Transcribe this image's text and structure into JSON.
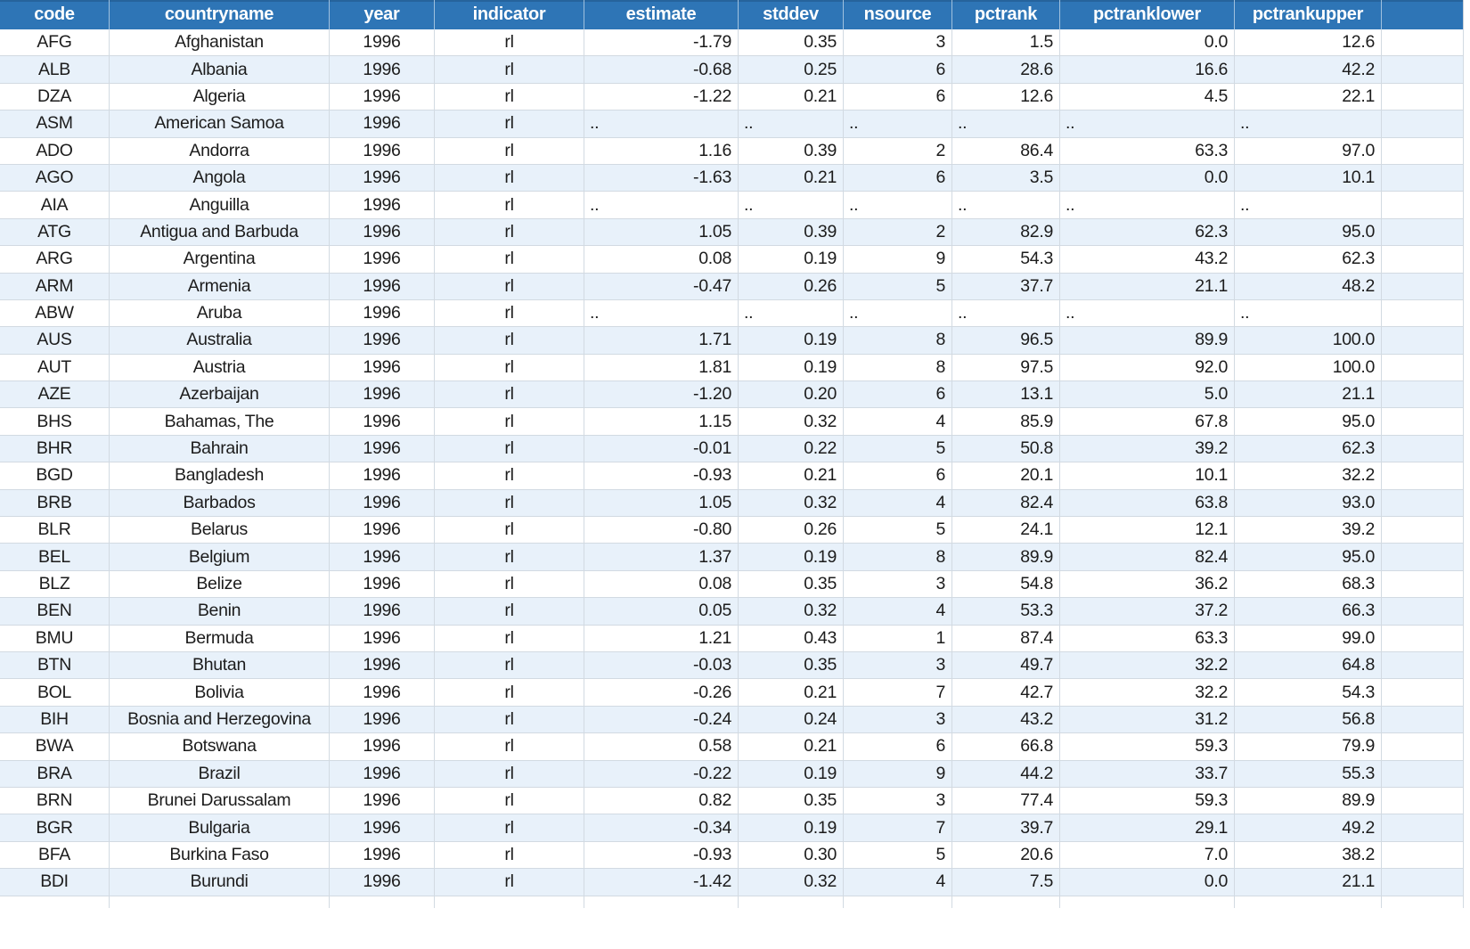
{
  "sheet": {
    "columns": [
      {
        "key": "code",
        "label": "code",
        "align": "center"
      },
      {
        "key": "countryname",
        "label": "countryname",
        "align": "center"
      },
      {
        "key": "year",
        "label": "year",
        "align": "center"
      },
      {
        "key": "indicator",
        "label": "indicator",
        "align": "center"
      },
      {
        "key": "estimate",
        "label": "estimate",
        "align": "right"
      },
      {
        "key": "stddev",
        "label": "stddev",
        "align": "right"
      },
      {
        "key": "nsource",
        "label": "nsource",
        "align": "right"
      },
      {
        "key": "pctrank",
        "label": "pctrank",
        "align": "right"
      },
      {
        "key": "pctranklower",
        "label": "pctranklower",
        "align": "right"
      },
      {
        "key": "pctrankupper",
        "label": "pctrankupper",
        "align": "right"
      }
    ],
    "missing_value_marker": "..",
    "selection": {
      "selected_cell": "code",
      "has_note_indicator": true
    },
    "colors": {
      "header_fill": "#2E75B6",
      "header_text": "#FFFFFF",
      "stripe_fill": "#E8F1FA",
      "gridline": "#D2DAE2",
      "selection_green": "#107C41",
      "note_red": "#D40000",
      "cell_text": "#1C1C1C"
    },
    "rows": [
      [
        "AFG",
        "Afghanistan",
        "1996",
        "rl",
        "-1.79",
        "0.35",
        "3",
        "1.5",
        "0.0",
        "12.6"
      ],
      [
        "ALB",
        "Albania",
        "1996",
        "rl",
        "-0.68",
        "0.25",
        "6",
        "28.6",
        "16.6",
        "42.2"
      ],
      [
        "DZA",
        "Algeria",
        "1996",
        "rl",
        "-1.22",
        "0.21",
        "6",
        "12.6",
        "4.5",
        "22.1"
      ],
      [
        "ASM",
        "American Samoa",
        "1996",
        "rl",
        "..",
        "..",
        "..",
        "..",
        "..",
        ".."
      ],
      [
        "ADO",
        "Andorra",
        "1996",
        "rl",
        "1.16",
        "0.39",
        "2",
        "86.4",
        "63.3",
        "97.0"
      ],
      [
        "AGO",
        "Angola",
        "1996",
        "rl",
        "-1.63",
        "0.21",
        "6",
        "3.5",
        "0.0",
        "10.1"
      ],
      [
        "AIA",
        "Anguilla",
        "1996",
        "rl",
        "..",
        "..",
        "..",
        "..",
        "..",
        ".."
      ],
      [
        "ATG",
        "Antigua and Barbuda",
        "1996",
        "rl",
        "1.05",
        "0.39",
        "2",
        "82.9",
        "62.3",
        "95.0"
      ],
      [
        "ARG",
        "Argentina",
        "1996",
        "rl",
        "0.08",
        "0.19",
        "9",
        "54.3",
        "43.2",
        "62.3"
      ],
      [
        "ARM",
        "Armenia",
        "1996",
        "rl",
        "-0.47",
        "0.26",
        "5",
        "37.7",
        "21.1",
        "48.2"
      ],
      [
        "ABW",
        "Aruba",
        "1996",
        "rl",
        "..",
        "..",
        "..",
        "..",
        "..",
        ".."
      ],
      [
        "AUS",
        "Australia",
        "1996",
        "rl",
        "1.71",
        "0.19",
        "8",
        "96.5",
        "89.9",
        "100.0"
      ],
      [
        "AUT",
        "Austria",
        "1996",
        "rl",
        "1.81",
        "0.19",
        "8",
        "97.5",
        "92.0",
        "100.0"
      ],
      [
        "AZE",
        "Azerbaijan",
        "1996",
        "rl",
        "-1.20",
        "0.20",
        "6",
        "13.1",
        "5.0",
        "21.1"
      ],
      [
        "BHS",
        "Bahamas, The",
        "1996",
        "rl",
        "1.15",
        "0.32",
        "4",
        "85.9",
        "67.8",
        "95.0"
      ],
      [
        "BHR",
        "Bahrain",
        "1996",
        "rl",
        "-0.01",
        "0.22",
        "5",
        "50.8",
        "39.2",
        "62.3"
      ],
      [
        "BGD",
        "Bangladesh",
        "1996",
        "rl",
        "-0.93",
        "0.21",
        "6",
        "20.1",
        "10.1",
        "32.2"
      ],
      [
        "BRB",
        "Barbados",
        "1996",
        "rl",
        "1.05",
        "0.32",
        "4",
        "82.4",
        "63.8",
        "93.0"
      ],
      [
        "BLR",
        "Belarus",
        "1996",
        "rl",
        "-0.80",
        "0.26",
        "5",
        "24.1",
        "12.1",
        "39.2"
      ],
      [
        "BEL",
        "Belgium",
        "1996",
        "rl",
        "1.37",
        "0.19",
        "8",
        "89.9",
        "82.4",
        "95.0"
      ],
      [
        "BLZ",
        "Belize",
        "1996",
        "rl",
        "0.08",
        "0.35",
        "3",
        "54.8",
        "36.2",
        "68.3"
      ],
      [
        "BEN",
        "Benin",
        "1996",
        "rl",
        "0.05",
        "0.32",
        "4",
        "53.3",
        "37.2",
        "66.3"
      ],
      [
        "BMU",
        "Bermuda",
        "1996",
        "rl",
        "1.21",
        "0.43",
        "1",
        "87.4",
        "63.3",
        "99.0"
      ],
      [
        "BTN",
        "Bhutan",
        "1996",
        "rl",
        "-0.03",
        "0.35",
        "3",
        "49.7",
        "32.2",
        "64.8"
      ],
      [
        "BOL",
        "Bolivia",
        "1996",
        "rl",
        "-0.26",
        "0.21",
        "7",
        "42.7",
        "32.2",
        "54.3"
      ],
      [
        "BIH",
        "Bosnia and Herzegovina",
        "1996",
        "rl",
        "-0.24",
        "0.24",
        "3",
        "43.2",
        "31.2",
        "56.8"
      ],
      [
        "BWA",
        "Botswana",
        "1996",
        "rl",
        "0.58",
        "0.21",
        "6",
        "66.8",
        "59.3",
        "79.9"
      ],
      [
        "BRA",
        "Brazil",
        "1996",
        "rl",
        "-0.22",
        "0.19",
        "9",
        "44.2",
        "33.7",
        "55.3"
      ],
      [
        "BRN",
        "Brunei Darussalam",
        "1996",
        "rl",
        "0.82",
        "0.35",
        "3",
        "77.4",
        "59.3",
        "89.9"
      ],
      [
        "BGR",
        "Bulgaria",
        "1996",
        "rl",
        "-0.34",
        "0.19",
        "7",
        "39.7",
        "29.1",
        "49.2"
      ],
      [
        "BFA",
        "Burkina Faso",
        "1996",
        "rl",
        "-0.93",
        "0.30",
        "5",
        "20.6",
        "7.0",
        "38.2"
      ],
      [
        "BDI",
        "Burundi",
        "1996",
        "rl",
        "-1.42",
        "0.32",
        "4",
        "7.5",
        "0.0",
        "21.1"
      ]
    ]
  }
}
